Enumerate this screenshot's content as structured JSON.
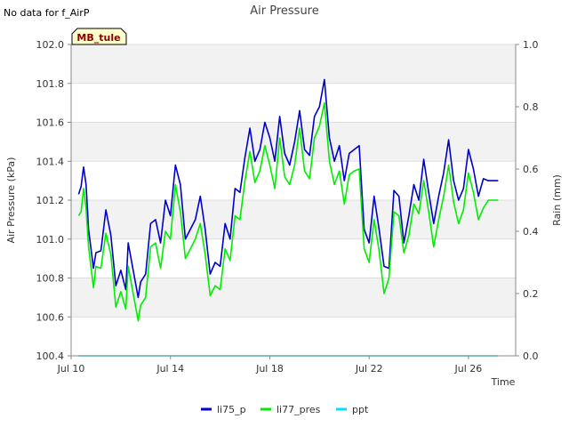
{
  "chart_data": {
    "type": "line",
    "title": "Air Pressure",
    "no_data_note": "No data for f_AirP",
    "station_badge": "MB_tule",
    "xlabel": "Time",
    "ylabel": "Air Pressure (kPa)",
    "y2label": "Rain (mm)",
    "x_range_days": [
      "2023-07-10",
      "2023-07-27"
    ],
    "x_ticks": [
      {
        "day": 10,
        "label": "Jul 10"
      },
      {
        "day": 14,
        "label": "Jul 14"
      },
      {
        "day": 18,
        "label": "Jul 18"
      },
      {
        "day": 22,
        "label": "Jul 22"
      },
      {
        "day": 26,
        "label": "Jul 26"
      }
    ],
    "ylim": [
      100.4,
      102.0
    ],
    "y_ticks": [
      "100.4",
      "100.6",
      "100.8",
      "101.0",
      "101.2",
      "101.4",
      "101.6",
      "101.8",
      "102.0"
    ],
    "y2lim": [
      0.0,
      1.0
    ],
    "y2_ticks": [
      "0.0",
      "0.2",
      "0.4",
      "0.6",
      "0.8",
      "1.0"
    ],
    "grid": true,
    "legend_position": "bottom-center",
    "series": [
      {
        "name": "li75_p",
        "color": "#0000cc",
        "x_day": [
          10.3,
          10.4,
          10.5,
          10.6,
          10.7,
          10.9,
          11.0,
          11.2,
          11.4,
          11.6,
          11.8,
          12.0,
          12.2,
          12.3,
          12.5,
          12.7,
          12.8,
          13.0,
          13.2,
          13.4,
          13.6,
          13.8,
          14.0,
          14.2,
          14.4,
          14.6,
          14.8,
          15.0,
          15.2,
          15.4,
          15.6,
          15.8,
          16.0,
          16.2,
          16.4,
          16.6,
          16.8,
          17.0,
          17.2,
          17.4,
          17.6,
          17.8,
          18.0,
          18.2,
          18.4,
          18.6,
          18.8,
          19.0,
          19.2,
          19.4,
          19.6,
          19.8,
          20.0,
          20.2,
          20.4,
          20.6,
          20.8,
          21.0,
          21.2,
          21.4,
          21.6,
          21.8,
          22.0,
          22.2,
          22.4,
          22.6,
          22.8,
          23.0,
          23.2,
          23.4,
          23.6,
          23.8,
          24.0,
          24.2,
          24.4,
          24.6,
          24.8,
          25.0,
          25.2,
          25.4,
          25.6,
          25.8,
          26.0,
          26.2,
          26.4,
          26.6,
          26.8,
          27.0,
          27.2
        ],
        "values": [
          101.23,
          101.27,
          101.37,
          101.28,
          101.05,
          100.85,
          100.93,
          100.94,
          101.15,
          101.02,
          100.76,
          100.84,
          100.74,
          100.98,
          100.84,
          100.7,
          100.78,
          100.82,
          101.08,
          101.1,
          100.98,
          101.2,
          101.12,
          101.38,
          101.28,
          101.0,
          101.05,
          101.1,
          101.22,
          101.05,
          100.82,
          100.88,
          100.86,
          101.08,
          101.0,
          101.26,
          101.24,
          101.42,
          101.57,
          101.4,
          101.46,
          101.6,
          101.52,
          101.4,
          101.63,
          101.44,
          101.38,
          101.5,
          101.66,
          101.46,
          101.43,
          101.63,
          101.68,
          101.82,
          101.52,
          101.4,
          101.48,
          101.3,
          101.44,
          101.46,
          101.48,
          101.05,
          100.98,
          101.22,
          101.05,
          100.86,
          100.85,
          101.25,
          101.22,
          100.98,
          101.12,
          101.28,
          101.2,
          101.41,
          101.24,
          101.08,
          101.22,
          101.34,
          101.51,
          101.3,
          101.2,
          101.26,
          101.46,
          101.36,
          101.22,
          101.31,
          101.3,
          101.3,
          101.3
        ]
      },
      {
        "name": "li77_pres",
        "color": "#00ee00",
        "x_day": [
          10.3,
          10.4,
          10.5,
          10.6,
          10.7,
          10.9,
          11.0,
          11.2,
          11.4,
          11.6,
          11.8,
          12.0,
          12.2,
          12.3,
          12.5,
          12.7,
          12.8,
          13.0,
          13.2,
          13.4,
          13.6,
          13.8,
          14.0,
          14.2,
          14.4,
          14.6,
          14.8,
          15.0,
          15.2,
          15.4,
          15.6,
          15.8,
          16.0,
          16.2,
          16.4,
          16.6,
          16.8,
          17.0,
          17.2,
          17.4,
          17.6,
          17.8,
          18.0,
          18.2,
          18.4,
          18.6,
          18.8,
          19.0,
          19.2,
          19.4,
          19.6,
          19.8,
          20.0,
          20.2,
          20.4,
          20.6,
          20.8,
          21.0,
          21.2,
          21.4,
          21.6,
          21.8,
          22.0,
          22.2,
          22.4,
          22.6,
          22.8,
          23.0,
          23.2,
          23.4,
          23.6,
          23.8,
          24.0,
          24.2,
          24.4,
          24.6,
          24.8,
          25.0,
          25.2,
          25.4,
          25.6,
          25.8,
          26.0,
          26.2,
          26.4,
          26.6,
          26.8,
          27.0,
          27.2
        ],
        "values": [
          101.12,
          101.14,
          101.26,
          101.16,
          100.96,
          100.75,
          100.86,
          100.85,
          101.03,
          100.92,
          100.65,
          100.73,
          100.64,
          100.86,
          100.72,
          100.58,
          100.66,
          100.7,
          100.96,
          100.98,
          100.85,
          101.04,
          101.0,
          101.28,
          101.14,
          100.9,
          100.95,
          101.0,
          101.08,
          100.92,
          100.71,
          100.76,
          100.74,
          100.95,
          100.89,
          101.12,
          101.1,
          101.3,
          101.45,
          101.29,
          101.35,
          101.48,
          101.38,
          101.26,
          101.52,
          101.32,
          101.28,
          101.38,
          101.57,
          101.35,
          101.31,
          101.52,
          101.58,
          101.7,
          101.4,
          101.28,
          101.35,
          101.18,
          101.33,
          101.35,
          101.36,
          100.95,
          100.88,
          101.1,
          100.94,
          100.72,
          100.8,
          101.14,
          101.12,
          100.93,
          101.02,
          101.18,
          101.13,
          101.3,
          101.14,
          100.96,
          101.1,
          101.22,
          101.38,
          101.19,
          101.08,
          101.15,
          101.34,
          101.24,
          101.1,
          101.16,
          101.2,
          101.2,
          101.2
        ]
      },
      {
        "name": "ppt",
        "color": "#00e5ee",
        "axis": "right",
        "x_day": [
          10.3,
          27.2
        ],
        "values": [
          0.0,
          0.0
        ]
      }
    ]
  }
}
